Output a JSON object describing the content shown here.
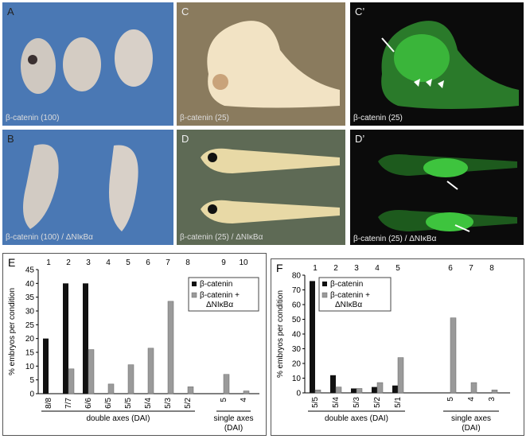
{
  "panels": {
    "A": {
      "letter": "A",
      "caption": "β-catenin (100)"
    },
    "B": {
      "letter": "B",
      "caption": "β-catenin (100) / ΔNIκBα"
    },
    "C": {
      "letter": "C",
      "caption": "β-catenin (25)"
    },
    "Cp": {
      "letter": "C’",
      "caption": "β-catenin (25)"
    },
    "D": {
      "letter": "D",
      "caption": "β-catenin (25) / ΔNIκBα"
    },
    "Dp": {
      "letter": "D’",
      "caption": "β-catenin (25) / ΔNIκBα"
    },
    "E": {
      "letter": "E"
    },
    "F": {
      "letter": "F"
    }
  },
  "colors": {
    "bg_blue": "#3f6ea8",
    "bg_brown": "#8a7b5e",
    "bg_black": "#0b0b0b",
    "fluor_green": "#2fbf3a",
    "series_dark": "#111111",
    "series_gray": "#9a9a9a"
  },
  "chart_data": [
    {
      "type": "bar",
      "panel": "E",
      "ylabel": "% embryos per condition",
      "ylim": [
        0,
        45
      ],
      "yticks": [
        0,
        5,
        10,
        15,
        20,
        25,
        30,
        35,
        40,
        45
      ],
      "column_numbers": [
        "1",
        "2",
        "3",
        "4",
        "5",
        "6",
        "7",
        "8",
        "9",
        "10"
      ],
      "categories": [
        "8/8",
        "7/7",
        "6/6",
        "6/5",
        "5/5",
        "5/4",
        "5/3",
        "5/2",
        "5",
        "4"
      ],
      "series": [
        {
          "name": "β-catenin",
          "values": [
            20,
            40,
            40,
            0,
            0,
            0,
            0,
            0,
            0,
            0
          ]
        },
        {
          "name": "β-catenin + ΔNIκBα",
          "values": [
            0,
            9,
            16,
            3.5,
            10.5,
            16.5,
            33.5,
            2.5,
            7,
            1
          ]
        }
      ],
      "groups": [
        {
          "label": "double axes (DAI)",
          "from": 0,
          "to": 7
        },
        {
          "label": "single axes (DAI)",
          "from": 8,
          "to": 9
        }
      ],
      "legend": "top-right"
    },
    {
      "type": "bar",
      "panel": "F",
      "ylabel": "% embryos per condition",
      "ylim": [
        0,
        80
      ],
      "yticks": [
        0,
        10,
        20,
        30,
        40,
        50,
        60,
        70,
        80
      ],
      "column_numbers": [
        "1",
        "2",
        "3",
        "4",
        "5",
        "6",
        "7",
        "8"
      ],
      "categories": [
        "5/5",
        "5/4",
        "5/3",
        "5/2",
        "5/1",
        "5",
        "4",
        "3"
      ],
      "series": [
        {
          "name": "β-catenin",
          "values": [
            76,
            12,
            3,
            4,
            5,
            0,
            0,
            0
          ]
        },
        {
          "name": "β-catenin + ΔNIκBα",
          "values": [
            2,
            4,
            3,
            7,
            24,
            51,
            7,
            2
          ]
        }
      ],
      "groups": [
        {
          "label": "double axes (DAI)",
          "from": 0,
          "to": 4
        },
        {
          "label": "single axes (DAI)",
          "from": 5,
          "to": 7
        }
      ],
      "legend": "top-left"
    }
  ]
}
